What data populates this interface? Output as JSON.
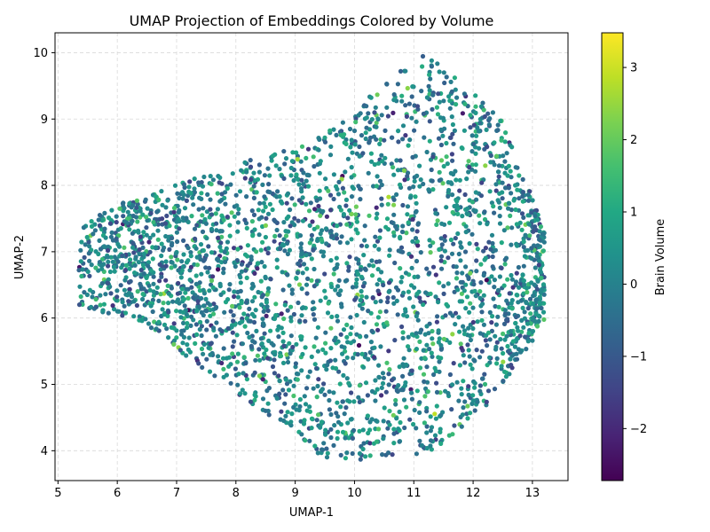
{
  "chart_data": {
    "type": "scatter",
    "title": "UMAP Projection of Embeddings Colored by Volume",
    "xlabel": "UMAP-1",
    "ylabel": "UMAP-2",
    "xlim": [
      4.95,
      13.6
    ],
    "ylim": [
      3.55,
      10.3
    ],
    "x_ticks": [
      5,
      6,
      7,
      8,
      9,
      10,
      11,
      12,
      13
    ],
    "y_ticks": [
      4,
      5,
      6,
      7,
      8,
      9,
      10
    ],
    "grid": true,
    "colorbar": {
      "label": "Brain Volume",
      "colormap": "viridis",
      "range": [
        -2.72,
        3.48
      ],
      "ticks": [
        -2,
        -1,
        0,
        1,
        2,
        3
      ]
    },
    "point_count": 3000,
    "distribution_note": "dense cloud of points roughly spanning x 5.3–13.2 and y 3.8–10.0, colored mostly between -1.5 and 1.5"
  }
}
